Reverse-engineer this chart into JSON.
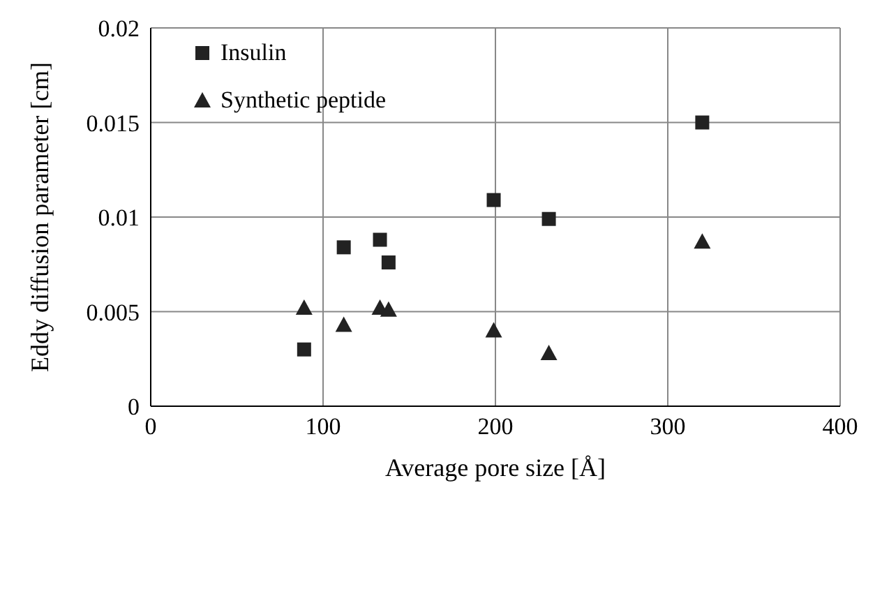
{
  "chart_data": {
    "type": "scatter",
    "xlabel": "Average pore size [Å]",
    "ylabel": "Eddy diffusion parameter [cm]",
    "xlim": [
      0,
      400
    ],
    "xticks": [
      0,
      100,
      200,
      300,
      400
    ],
    "ylim": [
      0,
      0.02
    ],
    "yticks": [
      0,
      0.005,
      0.01,
      0.015,
      0.02
    ],
    "grid": true,
    "legend": "top left",
    "series": [
      {
        "name": "Insulin",
        "color": "#222222",
        "marker": "square",
        "x": [
          89,
          112,
          133,
          138,
          199,
          231,
          320
        ],
        "values": [
          0.003,
          0.0084,
          0.0088,
          0.0076,
          0.0109,
          0.0099,
          0.015
        ]
      },
      {
        "name": "Synthetic peptide",
        "color": "#222222",
        "marker": "triangle",
        "x": [
          89,
          112,
          133,
          138,
          199,
          231,
          320
        ],
        "values": [
          0.0052,
          0.0043,
          0.0052,
          0.0051,
          0.004,
          0.0028,
          0.0087
        ]
      }
    ]
  }
}
